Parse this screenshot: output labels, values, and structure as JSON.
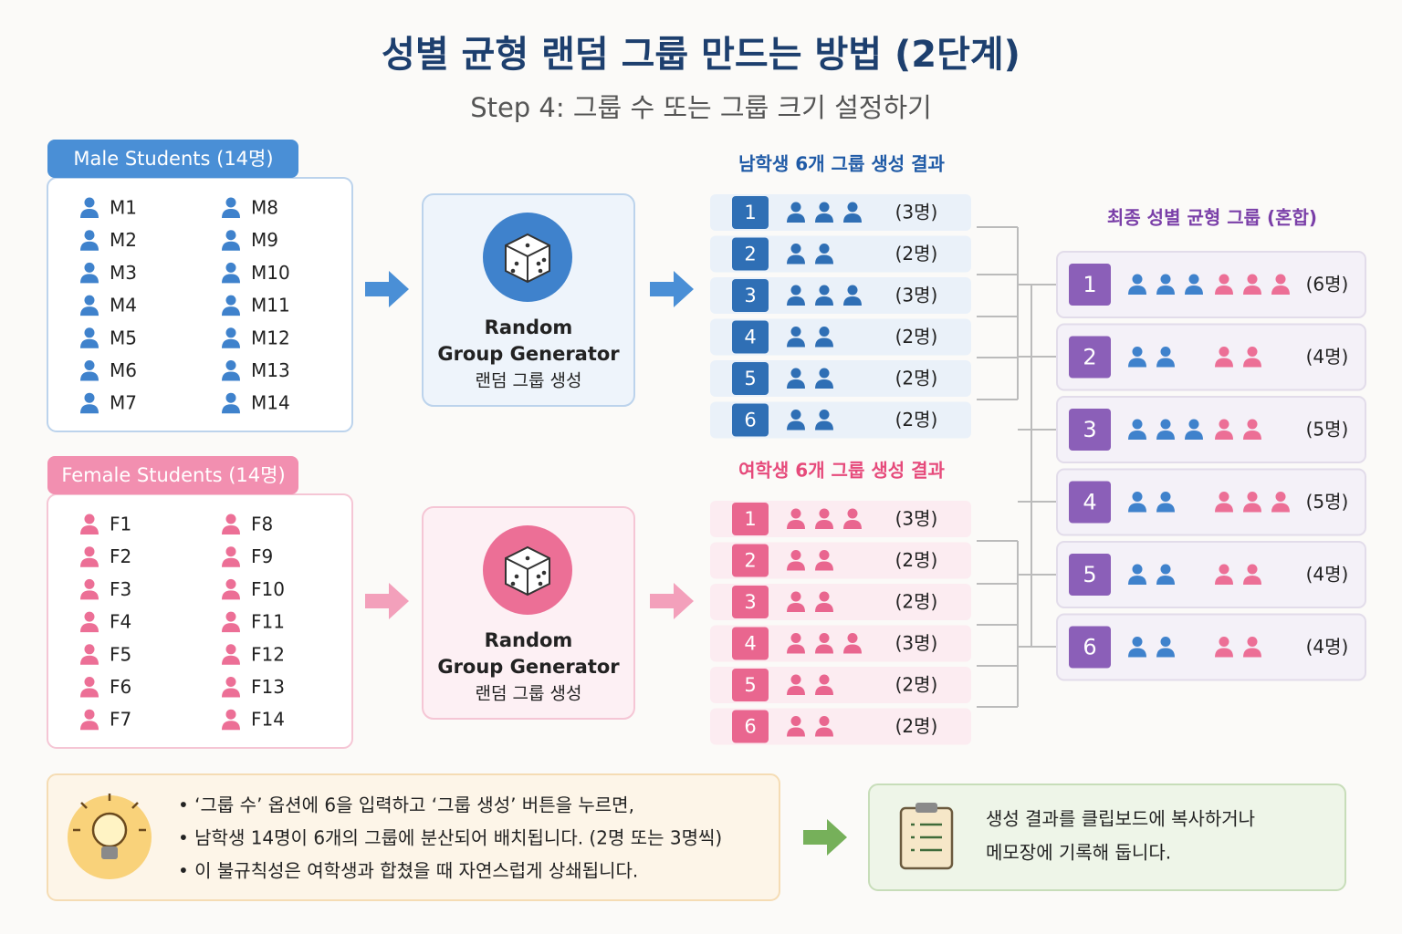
{
  "title": "성별 균형 랜덤 그룹 만드는 방법 (2단계)",
  "subtitle": "Step 4: 그룹 수 또는 그룹 크기 설정하기",
  "male_students": {
    "header": "Male Students (14명)",
    "names": [
      "M1",
      "M2",
      "M3",
      "M4",
      "M5",
      "M6",
      "M7",
      "M8",
      "M9",
      "M10",
      "M11",
      "M12",
      "M13",
      "M14"
    ]
  },
  "female_students": {
    "header": "Female Students (14명)",
    "names": [
      "F1",
      "F2",
      "F3",
      "F4",
      "F5",
      "F6",
      "F7",
      "F8",
      "F9",
      "F10",
      "F11",
      "F12",
      "F13",
      "F14"
    ]
  },
  "generators": [
    {
      "lines": [
        "Random",
        "Group Generator",
        "랜덤 그룹 생성"
      ]
    },
    {
      "lines": [
        "Random",
        "Group Generator",
        "랜덤 그룹 생성"
      ]
    }
  ],
  "male_groups": {
    "title": "남학생 6개 그룹 생성 결과",
    "groups": [
      {
        "id": 1,
        "size": 3,
        "size_label": "(3명)"
      },
      {
        "id": 2,
        "size": 2,
        "size_label": "(2명)"
      },
      {
        "id": 3,
        "size": 3,
        "size_label": "(3명)"
      },
      {
        "id": 4,
        "size": 2,
        "size_label": "(2명)"
      },
      {
        "id": 5,
        "size": 2,
        "size_label": "(2명)"
      },
      {
        "id": 6,
        "size": 2,
        "size_label": "(2명)"
      }
    ]
  },
  "female_groups": {
    "title": "여학생 6개 그룹 생성 결과",
    "groups": [
      {
        "id": 1,
        "size": 3,
        "size_label": "(3명)"
      },
      {
        "id": 2,
        "size": 2,
        "size_label": "(2명)"
      },
      {
        "id": 3,
        "size": 2,
        "size_label": "(2명)"
      },
      {
        "id": 4,
        "size": 3,
        "size_label": "(3명)"
      },
      {
        "id": 5,
        "size": 2,
        "size_label": "(2명)"
      },
      {
        "id": 6,
        "size": 2,
        "size_label": "(2명)"
      }
    ]
  },
  "mixed_groups": {
    "title": "최종 성별 균형 그룹 (혼합)",
    "groups": [
      {
        "id": 1,
        "male": 3,
        "female": 3,
        "size_label": "(6명)"
      },
      {
        "id": 2,
        "male": 2,
        "female": 2,
        "size_label": "(4명)"
      },
      {
        "id": 3,
        "male": 3,
        "female": 2,
        "size_label": "(5명)"
      },
      {
        "id": 4,
        "male": 2,
        "female": 3,
        "size_label": "(5명)"
      },
      {
        "id": 5,
        "male": 2,
        "female": 2,
        "size_label": "(4명)"
      },
      {
        "id": 6,
        "male": 2,
        "female": 2,
        "size_label": "(4명)"
      }
    ]
  },
  "tip": {
    "lines": [
      "• ‘그룹 수’ 옵션에 6을 입력하고 ‘그룹 생성’ 버튼을 누르면,",
      "• 남학생 14명이 6개의 그룹에 분산되어 배치됩니다. (2명 또는 3명씩)",
      "• 이 불규칙성은 여학생과 합쳤을 때 자연스럽게 상쇄됩니다."
    ]
  },
  "note": {
    "lines": [
      "생성 결과를 클립보드에 복사하거나",
      "메모장에 기록해 둡니다."
    ]
  }
}
